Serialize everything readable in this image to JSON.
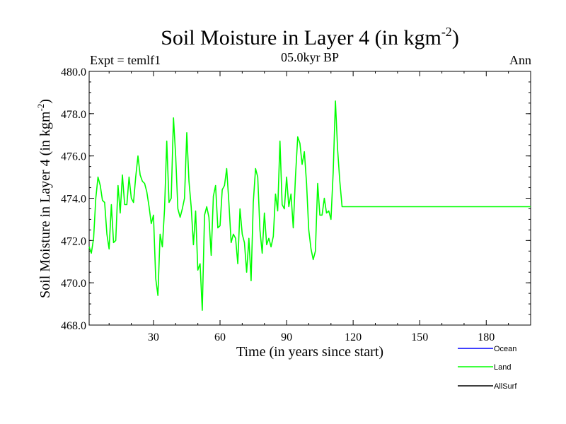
{
  "chart_data": {
    "type": "line",
    "title": "Soil Moisture in Layer 4 (in kgm",
    "title_sup": "-2",
    "title_close": ")",
    "subtitle": "05.0kyr BP",
    "left_label": "Expt = temlf1",
    "right_label": "Ann",
    "xlabel": "Time (in years since start)",
    "ylabel": "Soil Moisture in Layer 4 (in kgm",
    "ylabel_sup": "-2",
    "ylabel_close": ")",
    "xlim": [
      1,
      200
    ],
    "ylim": [
      468.0,
      480.0
    ],
    "xticks": [
      30,
      60,
      90,
      120,
      150,
      180
    ],
    "yticks": [
      468.0,
      470.0,
      472.0,
      474.0,
      476.0,
      478.0,
      480.0
    ],
    "ytick_labels": [
      "468.0",
      "470.0",
      "472.0",
      "474.0",
      "476.0",
      "478.0",
      "480.0"
    ],
    "legend": [
      {
        "name": "Ocean",
        "color": "#0000ff"
      },
      {
        "name": "Land",
        "color": "#00ff00"
      },
      {
        "name": "AllSurf",
        "color": "#000000"
      }
    ],
    "series": [
      {
        "name": "Land",
        "color": "#00ff00",
        "x": [
          1,
          2,
          3,
          4,
          5,
          6,
          7,
          8,
          9,
          10,
          11,
          12,
          13,
          14,
          15,
          16,
          17,
          18,
          19,
          20,
          21,
          22,
          23,
          24,
          25,
          26,
          27,
          28,
          29,
          30,
          31,
          32,
          33,
          34,
          35,
          36,
          37,
          38,
          39,
          40,
          41,
          42,
          43,
          44,
          45,
          46,
          47,
          48,
          49,
          50,
          51,
          52,
          53,
          54,
          55,
          56,
          57,
          58,
          59,
          60,
          61,
          62,
          63,
          64,
          65,
          66,
          67,
          68,
          69,
          70,
          71,
          72,
          73,
          74,
          75,
          76,
          77,
          78,
          79,
          80,
          81,
          82,
          83,
          84,
          85,
          86,
          87,
          88,
          89,
          90,
          91,
          92,
          93,
          94,
          95,
          96,
          97,
          98,
          99,
          100,
          101,
          102,
          103,
          104,
          105,
          106,
          107,
          108,
          109,
          110,
          111,
          112,
          113,
          114,
          115,
          200
        ],
        "values": [
          471.7,
          471.4,
          472.1,
          474.0,
          475.0,
          474.6,
          473.9,
          473.8,
          472.3,
          471.6,
          473.7,
          471.9,
          472.0,
          474.6,
          473.3,
          475.1,
          473.7,
          473.7,
          475.0,
          474.0,
          473.8,
          475.0,
          476.0,
          475.1,
          474.8,
          474.7,
          474.3,
          473.6,
          472.8,
          473.2,
          470.2,
          469.4,
          472.3,
          471.7,
          473.5,
          476.7,
          473.8,
          474.0,
          477.8,
          476.0,
          473.5,
          473.1,
          473.5,
          474.0,
          477.1,
          474.8,
          473.6,
          471.8,
          473.4,
          470.6,
          470.9,
          468.7,
          473.2,
          473.6,
          473.1,
          471.3,
          474.1,
          474.6,
          472.6,
          472.7,
          474.4,
          474.6,
          475.4,
          473.8,
          471.9,
          472.3,
          472.1,
          470.9,
          473.5,
          472.3,
          471.9,
          470.5,
          472.1,
          470.1,
          473.8,
          475.4,
          475.0,
          472.5,
          471.4,
          473.3,
          471.8,
          472.1,
          471.7,
          472.2,
          474.2,
          473.4,
          476.7,
          473.7,
          473.5,
          475.0,
          473.6,
          474.2,
          472.6,
          475.0,
          476.9,
          476.6,
          475.6,
          476.2,
          474.7,
          472.5,
          471.6,
          471.1,
          471.5,
          474.7,
          473.2,
          473.2,
          474.0,
          473.3,
          473.4,
          473.0,
          475.2,
          478.6,
          476.3,
          474.8,
          473.6,
          473.6
        ]
      }
    ]
  }
}
